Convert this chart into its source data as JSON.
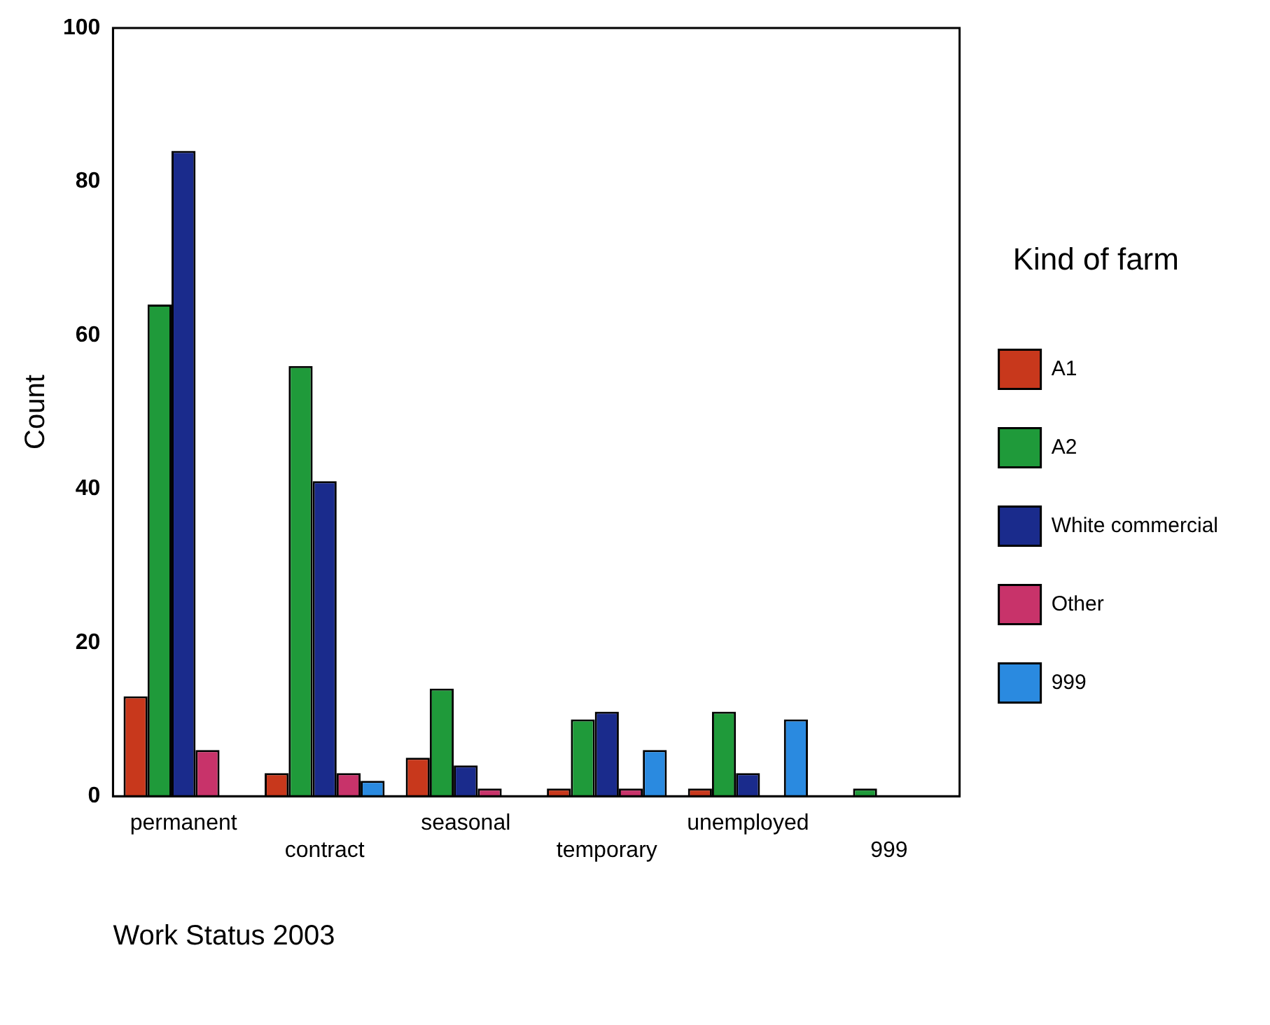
{
  "chart_data": {
    "type": "bar",
    "xlabel": "Work Status 2003",
    "ylabel": "Count",
    "legend_title": "Kind of farm",
    "categories": [
      "permanent",
      "contract",
      "seasonal",
      "temporary",
      "unemployed",
      "999"
    ],
    "series": [
      {
        "name": "A1",
        "color": "#c8381c",
        "values": [
          13,
          3,
          5,
          1,
          1,
          0
        ]
      },
      {
        "name": "A2",
        "color": "#1f9a3a",
        "values": [
          64,
          56,
          14,
          10,
          11,
          1
        ]
      },
      {
        "name": "White commercial",
        "color": "#1a2b8c",
        "values": [
          84,
          41,
          4,
          11,
          3,
          0
        ]
      },
      {
        "name": "Other",
        "color": "#c8336a",
        "values": [
          6,
          3,
          1,
          1,
          0,
          0
        ]
      },
      {
        "name": "999",
        "color": "#2a8ae0",
        "values": [
          0,
          2,
          0,
          6,
          10,
          0
        ]
      }
    ],
    "ylim": [
      0,
      100
    ],
    "yticks": [
      0,
      20,
      40,
      60,
      80,
      100
    ],
    "grid": false,
    "legend": "right"
  }
}
